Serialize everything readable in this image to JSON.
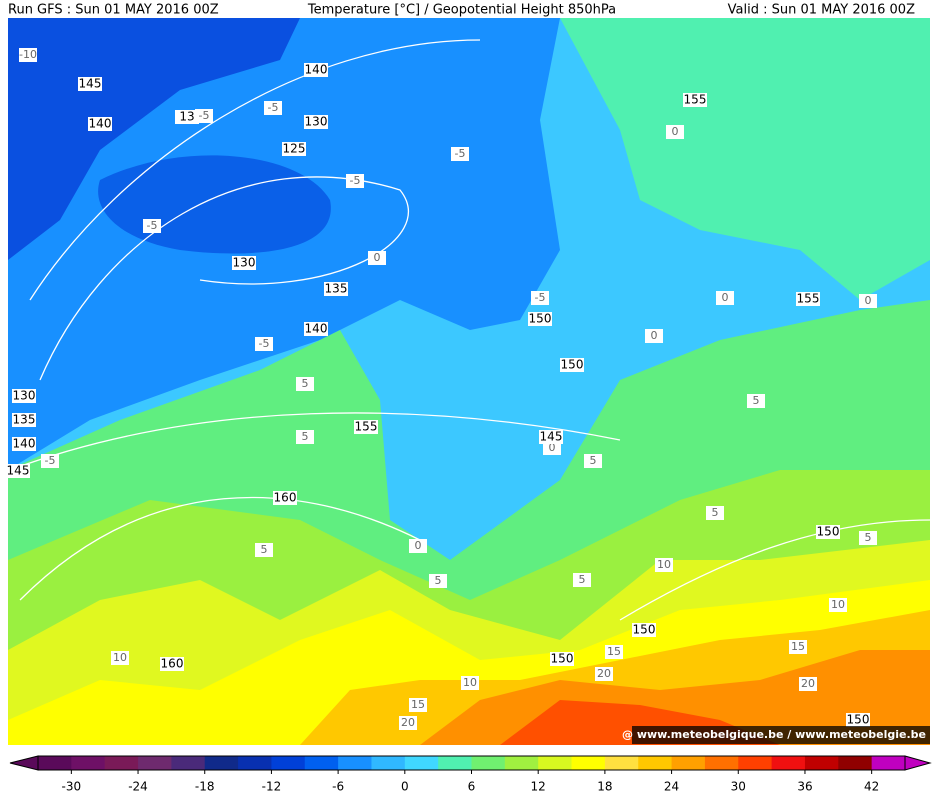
{
  "header": {
    "run": "Run GFS : Sun 01 MAY 2016 00Z",
    "title": "Temperature [°C] / Geopotential Height 850hPa",
    "valid": "Valid : Sun 01 MAY 2016 00Z"
  },
  "map": {
    "height_labels": [
      145,
      140,
      140,
      130,
      125,
      13,
      130,
      135,
      140,
      150,
      155,
      155,
      130,
      135,
      140,
      145,
      155,
      150,
      145,
      160,
      150,
      150,
      150,
      160,
      150
    ],
    "temperature_labels": [
      -10,
      -5,
      -5,
      -5,
      -5,
      -5,
      -5,
      -5,
      -5,
      0,
      0,
      0,
      0,
      0,
      0,
      0,
      5,
      5,
      5,
      5,
      5,
      5,
      5,
      5,
      5,
      10,
      10,
      10,
      10,
      15,
      15,
      15,
      20,
      20,
      20
    ],
    "credit": "@ www.meteobelgique.be / www.meteobelgie.be"
  },
  "colorbar": {
    "range": [
      -33,
      45
    ],
    "ticks": [
      -30,
      -24,
      -18,
      -12,
      -6,
      0,
      6,
      12,
      18,
      24,
      30,
      36,
      42
    ],
    "colors": [
      "#5a0a5a",
      "#6e1066",
      "#7a1a58",
      "#6e2a6e",
      "#4a2a7a",
      "#102a8a",
      "#0830b0",
      "#0040d8",
      "#0060f0",
      "#1890ff",
      "#30b8ff",
      "#40d8ff",
      "#50f0b0",
      "#70f070",
      "#a0f040",
      "#d8f820",
      "#ffff00",
      "#ffe040",
      "#ffc800",
      "#ffa000",
      "#ff7000",
      "#ff4000",
      "#f01010",
      "#c00000",
      "#900000",
      "#c000c0"
    ]
  }
}
